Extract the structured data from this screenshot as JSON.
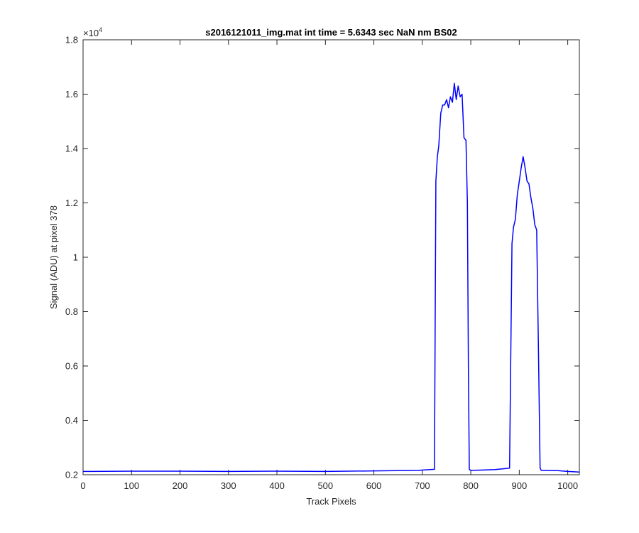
{
  "chart_data": {
    "type": "line",
    "title": "s2016121011_img.mat int time = 5.6343 sec  NaN nm BS02",
    "xlabel": "Track Pixels",
    "ylabel": "Signal (ADU) at pixel 378",
    "xlim": [
      0,
      1024
    ],
    "ylim": [
      2000,
      18000
    ],
    "y_exponent_base": "×10",
    "y_exponent_power": "4",
    "x_ticks": [
      0,
      100,
      200,
      300,
      400,
      500,
      600,
      700,
      800,
      900,
      1000
    ],
    "x_tick_labels": [
      "0",
      "100",
      "200",
      "300",
      "400",
      "500",
      "600",
      "700",
      "800",
      "900",
      "1000"
    ],
    "y_ticks": [
      2000,
      4000,
      6000,
      8000,
      10000,
      12000,
      14000,
      16000,
      18000
    ],
    "y_tick_labels": [
      "0.2",
      "0.4",
      "0.6",
      "0.8",
      "1",
      "1.2",
      "1.4",
      "1.6",
      "1.8"
    ],
    "grid": false,
    "line_color": "#0000ff",
    "series": [
      {
        "x": [
          0,
          100,
          200,
          300,
          400,
          500,
          600,
          690,
          725,
          728,
          731,
          734,
          738,
          742,
          746,
          750,
          754,
          758,
          762,
          766,
          770,
          774,
          778,
          782,
          786,
          790,
          793,
          795,
          797,
          800,
          820,
          850,
          880,
          885,
          888,
          892,
          896,
          900,
          904,
          908,
          912,
          916,
          920,
          924,
          928,
          932,
          936,
          940,
          943,
          945,
          947,
          950,
          980,
          1000,
          1024
        ],
        "y": [
          2120,
          2130,
          2130,
          2120,
          2130,
          2120,
          2140,
          2160,
          2200,
          12800,
          13700,
          14100,
          15300,
          15600,
          15600,
          15800,
          15500,
          15900,
          15700,
          16400,
          15800,
          16300,
          15900,
          16000,
          14400,
          14300,
          12000,
          6000,
          2200,
          2160,
          2170,
          2190,
          2240,
          10500,
          11100,
          11400,
          12300,
          12800,
          13300,
          13700,
          13300,
          12800,
          12700,
          12200,
          11800,
          11200,
          11000,
          6000,
          2250,
          2170,
          2160,
          2160,
          2150,
          2120,
          2100
        ]
      }
    ]
  }
}
